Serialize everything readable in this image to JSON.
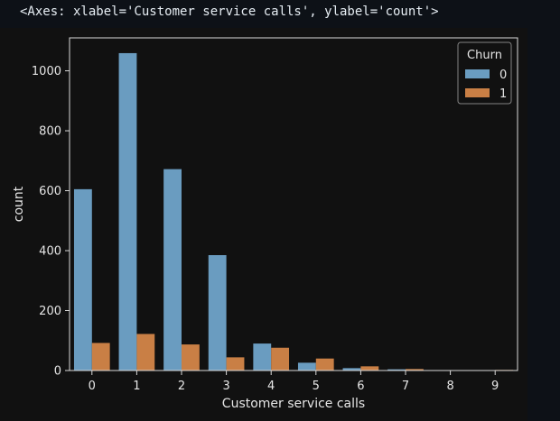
{
  "output_repr": "<Axes: xlabel='Customer service calls', ylabel='count'>",
  "chart_data": {
    "type": "bar",
    "xlabel": "Customer service calls",
    "ylabel": "count",
    "categories": [
      "0",
      "1",
      "2",
      "3",
      "4",
      "5",
      "6",
      "7",
      "8",
      "9"
    ],
    "yticks": [
      "0",
      "200",
      "400",
      "600",
      "800",
      "1000"
    ],
    "ylim": [
      0,
      1110
    ],
    "grid": false,
    "legend": {
      "title": "Churn",
      "placement": "top-right"
    },
    "series": [
      {
        "name": "0",
        "color": "#6a9cc0",
        "values": [
          605,
          1059,
          672,
          385,
          90,
          26,
          8,
          4,
          1,
          0
        ]
      },
      {
        "name": "1",
        "color": "#c97f45",
        "values": [
          92,
          122,
          87,
          44,
          76,
          40,
          14,
          5,
          1,
          2
        ]
      }
    ],
    "colors": {
      "figure_bg": "#111111",
      "text": "#e6e6e6",
      "axis": "#d9d9d9"
    }
  }
}
